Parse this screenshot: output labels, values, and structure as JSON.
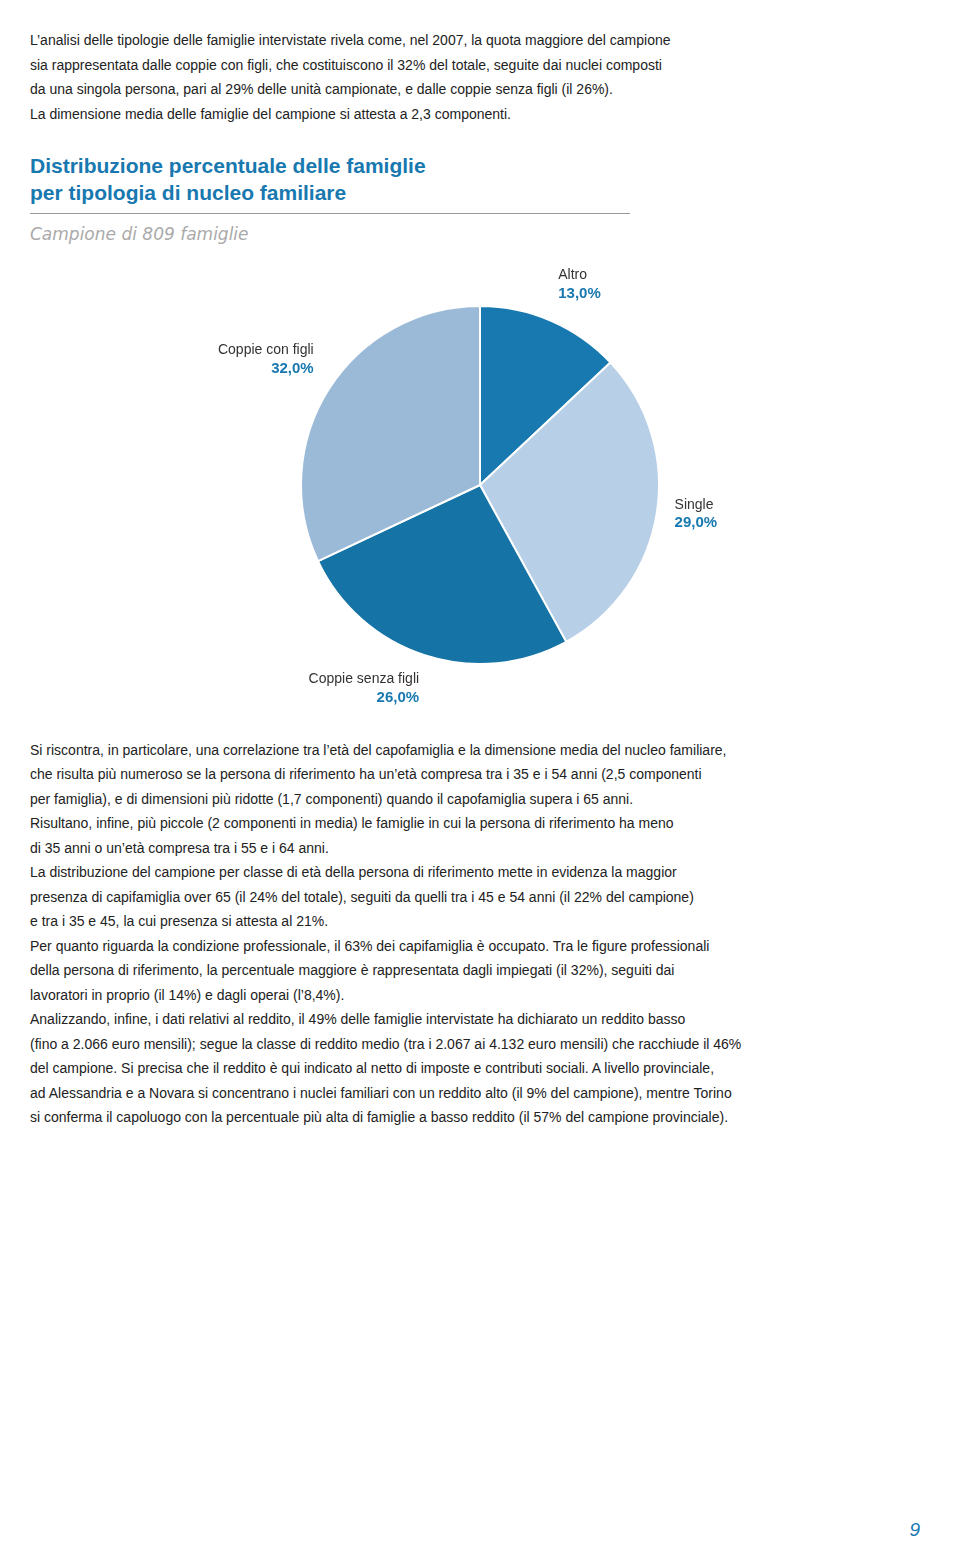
{
  "chart_data": {
    "type": "pie",
    "title": [
      "Distribuzione percentuale delle famiglie",
      "per tipologia di nucleo familiare"
    ],
    "subtitle": "Campione di 809 famiglie",
    "categories": [
      "Altro",
      "Single",
      "Coppie senza figli",
      "Coppie con figli"
    ],
    "values": [
      13.0,
      29.0,
      26.0,
      32.0
    ],
    "value_labels": [
      "13,0%",
      "29,0%",
      "26,0%",
      "32,0%"
    ],
    "colors": [
      "#1878b0",
      "#b8cfe8",
      "#1573a5",
      "#9bbad8"
    ],
    "data_labels": true,
    "annotations": [
      "L’analisi delle tipologie delle famiglie intervistate rivela come, nel 2007, la quota maggiore del campione\nsia rappresentata dalle coppie con figli, che costituiscono il 32% del totale, seguite dai nuclei composti\nda una singola persona, pari al 29% delle unità campionate, e dalle coppie senza figli (il 26%).\nLa dimensione media delle famiglie del campione si attesta a 2,3 componenti.",
      "Si riscontra, in particolare, una correlazione tra l’età del capofamiglia e la dimensione media del nucleo familiare,\nche risulta più numeroso se la persona di riferimento ha un’età compresa tra i 35 e i 54 anni (2,5 componenti\nper famiglia), e di dimensioni più ridotte (1,7 componenti) quando il capofamiglia supera i 65 anni.\nRisultano, infine, più piccole (2 componenti in media) le famiglie in cui la persona di riferimento ha meno\ndi 35 anni o un’età compresa tra i 55 e i 64 anni.\nLa distribuzione del campione per classe di età della persona di riferimento mette in evidenza la maggior\npresenza di capifamiglia over 65 (il 24% del totale), seguiti da quelli tra i 45 e 54 anni (il 22% del campione)\ne tra i 35 e 45, la cui presenza si attesta al 21%.\nPer quanto riguarda la condizione professionale, il 63% dei capifamiglia è occupato. Tra le figure professionali\ndella persona di riferimento, la percentuale maggiore è rappresentata dagli impiegati (il 32%), seguiti dai\nlavoratori in proprio (il 14%) e dagli operai (l’8,4%).\nAnalizzando, infine, i dati relativi al reddito, il 49% delle famiglie intervistate ha dichiarato un reddito basso\n(fino a 2.066 euro mensili); segue la classe di reddito medio (tra i 2.067 ai 4.132 euro mensili) che racchiude il 46%\ndel campione. Si precisa che il reddito è qui indicato al netto di imposte e contributi sociali. A livello provinciale,\nad Alessandria e a Novara si concentrano i nuclei familiari con un reddito alto (il 9% del campione), mentre Torino\nsi conferma il capoluogo con la percentuale più alta di famiglie a basso reddito (il 57% del campione provinciale).",
      "9"
    ]
  }
}
